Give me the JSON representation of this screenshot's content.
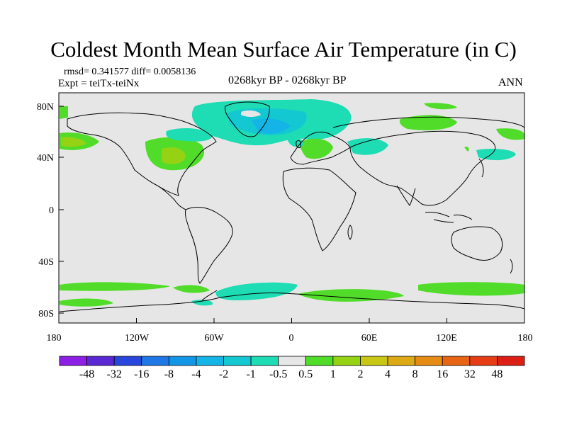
{
  "title": "Coldest Month Mean Surface Air Temperature (in C)",
  "stats": {
    "rmsd": "rmsd= 0.341577 diff= 0.0058136"
  },
  "experiment": "Expt = teiTx-teiNx",
  "period": "0268kyr BP - 0268kyr BP",
  "season": "ANN",
  "axes": {
    "x_ticks": [
      "180",
      "120W",
      "60W",
      "0",
      "60E",
      "120E",
      "180"
    ],
    "y_ticks": [
      "80N",
      "40N",
      "0",
      "40S",
      "80S"
    ]
  },
  "colorbar": {
    "labels": [
      "-48",
      "-32",
      "-16",
      "-8",
      "-4",
      "-2",
      "-1",
      "-0.5",
      "0.5",
      "1",
      "2",
      "4",
      "8",
      "16",
      "32",
      "48"
    ],
    "colors": [
      "#8c1ee6",
      "#5a28d2",
      "#2846dc",
      "#1e78e6",
      "#1496e6",
      "#14b4e6",
      "#14c8d2",
      "#1edcb4",
      "#e6e6e6",
      "#50dc28",
      "#96d214",
      "#c8c814",
      "#dcaa14",
      "#e68c14",
      "#e66414",
      "#e63c14",
      "#dc1e14"
    ]
  },
  "palette": {
    "land_sea_background": "#e6e6e6",
    "coast": "#000000"
  }
}
